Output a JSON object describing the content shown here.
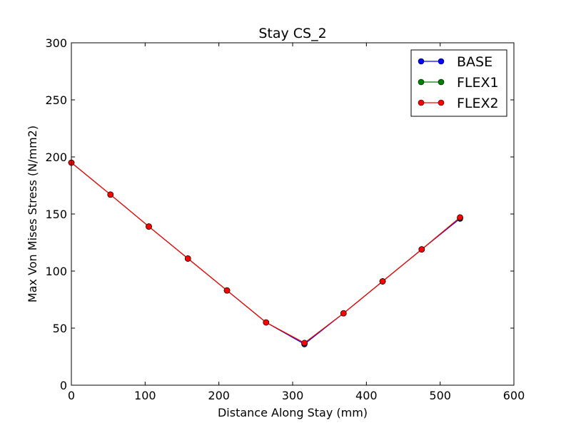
{
  "chart_data": {
    "type": "line",
    "title": "Stay CS_2",
    "xlabel": "Distance Along Stay (mm)",
    "ylabel": "Max Von Mises Stress (N/mm2)",
    "xlim": [
      0,
      600
    ],
    "ylim": [
      0,
      300
    ],
    "xticks": [
      "0",
      "100",
      "200",
      "300",
      "400",
      "500",
      "600"
    ],
    "yticks": [
      "0",
      "50",
      "100",
      "150",
      "200",
      "250",
      "300"
    ],
    "grid": false,
    "legend_position": "top-right",
    "x": [
      0,
      53,
      105,
      158,
      211,
      264,
      316,
      369,
      422,
      475,
      527
    ],
    "series": [
      {
        "name": "BASE",
        "color": "#0000ff",
        "values": [
          195,
          167,
          139,
          111,
          83,
          55,
          36,
          63,
          91,
          119,
          146
        ]
      },
      {
        "name": "FLEX1",
        "color": "#008000",
        "values": [
          195,
          167,
          139,
          111,
          83,
          55,
          37,
          63,
          91,
          119,
          147
        ]
      },
      {
        "name": "FLEX2",
        "color": "#ff0000",
        "values": [
          195,
          167,
          139,
          111,
          83,
          55,
          37,
          63,
          91,
          119,
          147
        ]
      }
    ]
  }
}
